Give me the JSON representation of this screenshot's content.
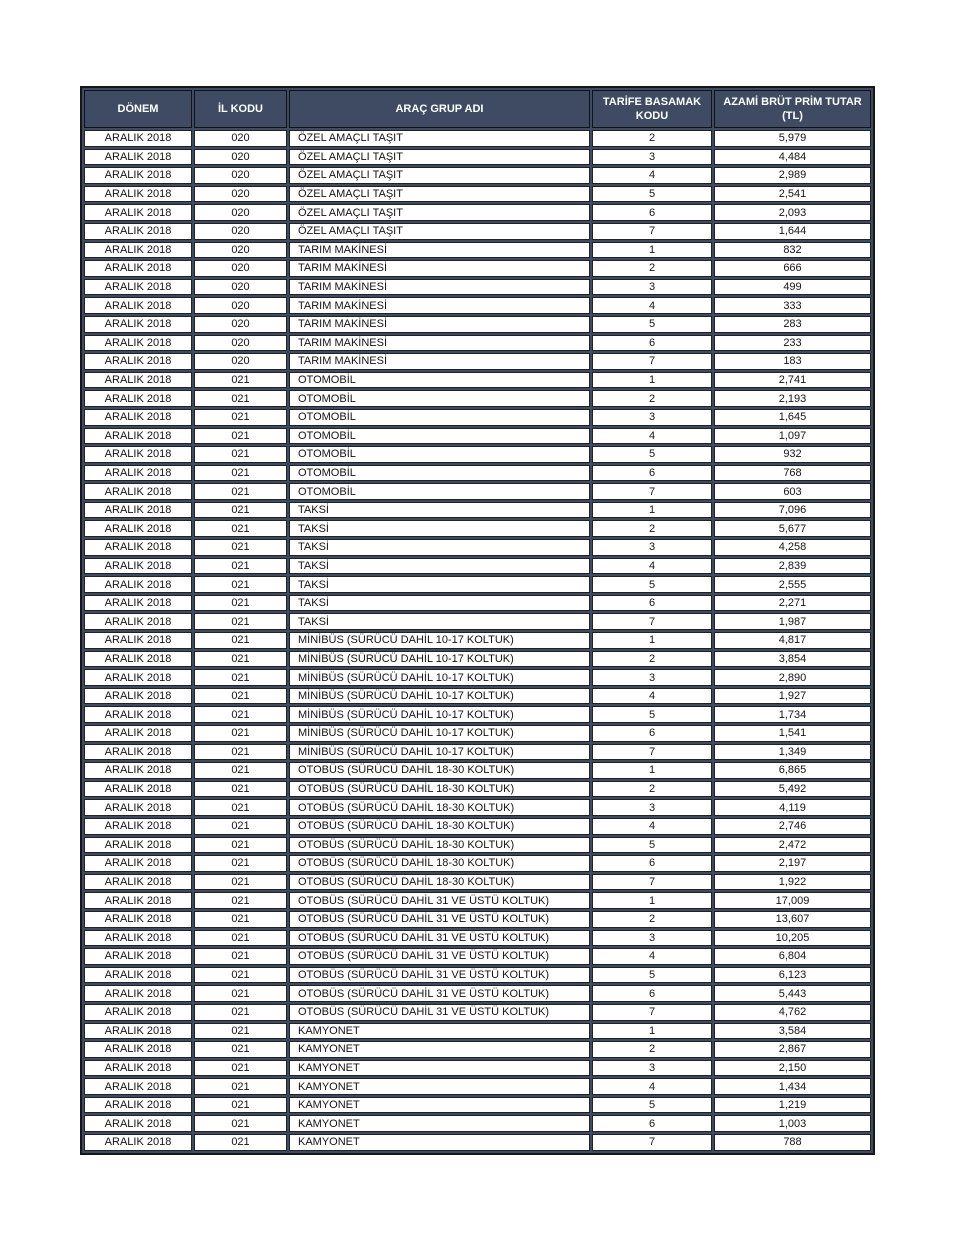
{
  "colors": {
    "header_bg": "#3e4b62",
    "header_text": "#ffffff",
    "border": "#161616",
    "body_text": "#141414",
    "page_bg": "#ffffff"
  },
  "table": {
    "columns": [
      {
        "key": "donem",
        "label": "DÖNEM",
        "label_lines": [
          "DÖNEM"
        ]
      },
      {
        "key": "il_kodu",
        "label": "İL KODU",
        "label_lines": [
          "İL KODU"
        ]
      },
      {
        "key": "arac_grup_adi",
        "label": "ARAÇ GRUP ADI",
        "label_lines": [
          "ARAÇ GRUP ADI"
        ]
      },
      {
        "key": "tarife_basamak_kodu",
        "label": "TARİFE BASAMAK KODU",
        "label_lines": [
          "TARİFE BASAMAK",
          "KODU"
        ]
      },
      {
        "key": "azami_brut_prim_tutar",
        "label": "AZAMİ BRÜT PRİM TUTAR (TL)",
        "label_lines": [
          "AZAMİ BRÜT PRİM TUTAR",
          "(TL)"
        ]
      }
    ],
    "rows": [
      [
        "ARALIK 2018",
        "020",
        "ÖZEL AMAÇLI TAŞIT",
        "2",
        "5,979"
      ],
      [
        "ARALIK 2018",
        "020",
        "ÖZEL AMAÇLI TAŞIT",
        "3",
        "4,484"
      ],
      [
        "ARALIK 2018",
        "020",
        "ÖZEL AMAÇLI TAŞIT",
        "4",
        "2,989"
      ],
      [
        "ARALIK 2018",
        "020",
        "ÖZEL AMAÇLI TAŞIT",
        "5",
        "2,541"
      ],
      [
        "ARALIK 2018",
        "020",
        "ÖZEL AMAÇLI TAŞIT",
        "6",
        "2,093"
      ],
      [
        "ARALIK 2018",
        "020",
        "ÖZEL AMAÇLI TAŞIT",
        "7",
        "1,644"
      ],
      [
        "ARALIK 2018",
        "020",
        "TARIM MAKİNESİ",
        "1",
        "832"
      ],
      [
        "ARALIK 2018",
        "020",
        "TARIM MAKİNESİ",
        "2",
        "666"
      ],
      [
        "ARALIK 2018",
        "020",
        "TARIM MAKİNESİ",
        "3",
        "499"
      ],
      [
        "ARALIK 2018",
        "020",
        "TARIM MAKİNESİ",
        "4",
        "333"
      ],
      [
        "ARALIK 2018",
        "020",
        "TARIM MAKİNESİ",
        "5",
        "283"
      ],
      [
        "ARALIK 2018",
        "020",
        "TARIM MAKİNESİ",
        "6",
        "233"
      ],
      [
        "ARALIK 2018",
        "020",
        "TARIM MAKİNESİ",
        "7",
        "183"
      ],
      [
        "ARALIK 2018",
        "021",
        "OTOMOBİL",
        "1",
        "2,741"
      ],
      [
        "ARALIK 2018",
        "021",
        "OTOMOBİL",
        "2",
        "2,193"
      ],
      [
        "ARALIK 2018",
        "021",
        "OTOMOBİL",
        "3",
        "1,645"
      ],
      [
        "ARALIK 2018",
        "021",
        "OTOMOBİL",
        "4",
        "1,097"
      ],
      [
        "ARALIK 2018",
        "021",
        "OTOMOBİL",
        "5",
        "932"
      ],
      [
        "ARALIK 2018",
        "021",
        "OTOMOBİL",
        "6",
        "768"
      ],
      [
        "ARALIK 2018",
        "021",
        "OTOMOBİL",
        "7",
        "603"
      ],
      [
        "ARALIK 2018",
        "021",
        "TAKSİ",
        "1",
        "7,096"
      ],
      [
        "ARALIK 2018",
        "021",
        "TAKSİ",
        "2",
        "5,677"
      ],
      [
        "ARALIK 2018",
        "021",
        "TAKSİ",
        "3",
        "4,258"
      ],
      [
        "ARALIK 2018",
        "021",
        "TAKSİ",
        "4",
        "2,839"
      ],
      [
        "ARALIK 2018",
        "021",
        "TAKSİ",
        "5",
        "2,555"
      ],
      [
        "ARALIK 2018",
        "021",
        "TAKSİ",
        "6",
        "2,271"
      ],
      [
        "ARALIK 2018",
        "021",
        "TAKSİ",
        "7",
        "1,987"
      ],
      [
        "ARALIK 2018",
        "021",
        "MİNİBÜS (SÜRÜCÜ DAHİL 10-17 KOLTUK)",
        "1",
        "4,817"
      ],
      [
        "ARALIK 2018",
        "021",
        "MİNİBÜS (SÜRÜCÜ DAHİL 10-17 KOLTUK)",
        "2",
        "3,854"
      ],
      [
        "ARALIK 2018",
        "021",
        "MİNİBÜS (SÜRÜCÜ DAHİL 10-17 KOLTUK)",
        "3",
        "2,890"
      ],
      [
        "ARALIK 2018",
        "021",
        "MİNİBÜS (SÜRÜCÜ DAHİL 10-17 KOLTUK)",
        "4",
        "1,927"
      ],
      [
        "ARALIK 2018",
        "021",
        "MİNİBÜS (SÜRÜCÜ DAHİL 10-17 KOLTUK)",
        "5",
        "1,734"
      ],
      [
        "ARALIK 2018",
        "021",
        "MİNİBÜS (SÜRÜCÜ DAHİL 10-17 KOLTUK)",
        "6",
        "1,541"
      ],
      [
        "ARALIK 2018",
        "021",
        "MİNİBÜS (SÜRÜCÜ DAHİL 10-17 KOLTUK)",
        "7",
        "1,349"
      ],
      [
        "ARALIK 2018",
        "021",
        "OTOBÜS (SÜRÜCÜ DAHİL 18-30 KOLTUK)",
        "1",
        "6,865"
      ],
      [
        "ARALIK 2018",
        "021",
        "OTOBÜS (SÜRÜCÜ DAHİL 18-30 KOLTUK)",
        "2",
        "5,492"
      ],
      [
        "ARALIK 2018",
        "021",
        "OTOBÜS (SÜRÜCÜ DAHİL 18-30 KOLTUK)",
        "3",
        "4,119"
      ],
      [
        "ARALIK 2018",
        "021",
        "OTOBÜS (SÜRÜCÜ DAHİL 18-30 KOLTUK)",
        "4",
        "2,746"
      ],
      [
        "ARALIK 2018",
        "021",
        "OTOBÜS (SÜRÜCÜ DAHİL 18-30 KOLTUK)",
        "5",
        "2,472"
      ],
      [
        "ARALIK 2018",
        "021",
        "OTOBÜS (SÜRÜCÜ DAHİL 18-30 KOLTUK)",
        "6",
        "2,197"
      ],
      [
        "ARALIK 2018",
        "021",
        "OTOBÜS (SÜRÜCÜ DAHİL 18-30 KOLTUK)",
        "7",
        "1,922"
      ],
      [
        "ARALIK 2018",
        "021",
        "OTOBÜS (SÜRÜCÜ DAHİL 31 VE ÜSTÜ KOLTUK)",
        "1",
        "17,009"
      ],
      [
        "ARALIK 2018",
        "021",
        "OTOBÜS (SÜRÜCÜ DAHİL 31 VE ÜSTÜ KOLTUK)",
        "2",
        "13,607"
      ],
      [
        "ARALIK 2018",
        "021",
        "OTOBÜS (SÜRÜCÜ DAHİL 31 VE ÜSTÜ KOLTUK)",
        "3",
        "10,205"
      ],
      [
        "ARALIK 2018",
        "021",
        "OTOBÜS (SÜRÜCÜ DAHİL 31 VE ÜSTÜ KOLTUK)",
        "4",
        "6,804"
      ],
      [
        "ARALIK 2018",
        "021",
        "OTOBÜS (SÜRÜCÜ DAHİL 31 VE ÜSTÜ KOLTUK)",
        "5",
        "6,123"
      ],
      [
        "ARALIK 2018",
        "021",
        "OTOBÜS (SÜRÜCÜ DAHİL 31 VE ÜSTÜ KOLTUK)",
        "6",
        "5,443"
      ],
      [
        "ARALIK 2018",
        "021",
        "OTOBÜS (SÜRÜCÜ DAHİL 31 VE ÜSTÜ KOLTUK)",
        "7",
        "4,762"
      ],
      [
        "ARALIK 2018",
        "021",
        "KAMYONET",
        "1",
        "3,584"
      ],
      [
        "ARALIK 2018",
        "021",
        "KAMYONET",
        "2",
        "2,867"
      ],
      [
        "ARALIK 2018",
        "021",
        "KAMYONET",
        "3",
        "2,150"
      ],
      [
        "ARALIK 2018",
        "021",
        "KAMYONET",
        "4",
        "1,434"
      ],
      [
        "ARALIK 2018",
        "021",
        "KAMYONET",
        "5",
        "1,219"
      ],
      [
        "ARALIK 2018",
        "021",
        "KAMYONET",
        "6",
        "1,003"
      ],
      [
        "ARALIK 2018",
        "021",
        "KAMYONET",
        "7",
        "788"
      ]
    ]
  }
}
